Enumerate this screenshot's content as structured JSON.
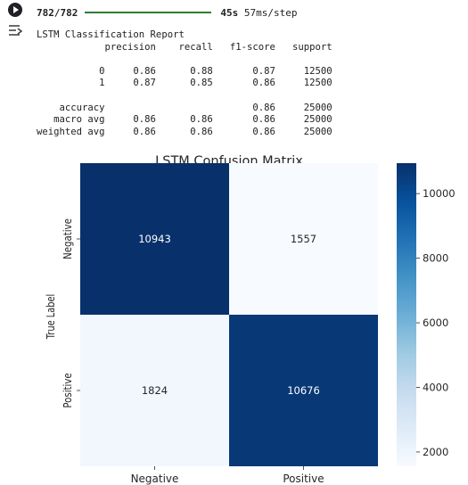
{
  "cell": {
    "run_icon": "play-circle-icon",
    "output_icon": "output-toggle-icon"
  },
  "progress": {
    "steps": "782/782",
    "fraction": 1.0,
    "time": "45s",
    "per_step": "57ms/step",
    "color": "#2e7d32"
  },
  "report": {
    "title": "LSTM Classification Report",
    "header": [
      "precision",
      "recall",
      "f1-score",
      "support"
    ],
    "rows": [
      {
        "label": "0",
        "precision": "0.86",
        "recall": "0.88",
        "f1": "0.87",
        "support": "12500"
      },
      {
        "label": "1",
        "precision": "0.87",
        "recall": "0.85",
        "f1": "0.86",
        "support": "12500"
      }
    ],
    "summary": [
      {
        "label": "accuracy",
        "precision": "",
        "recall": "",
        "f1": "0.86",
        "support": "25000"
      },
      {
        "label": "macro avg",
        "precision": "0.86",
        "recall": "0.86",
        "f1": "0.86",
        "support": "25000"
      },
      {
        "label": "weighted avg",
        "precision": "0.86",
        "recall": "0.86",
        "f1": "0.86",
        "support": "25000"
      }
    ]
  },
  "chart_data": {
    "type": "heatmap",
    "title": "LSTM Confusion Matrix",
    "ylabel": "True Label",
    "xlabel": "",
    "x_categories": [
      "Negative",
      "Positive"
    ],
    "y_categories": [
      "Negative",
      "Positive"
    ],
    "values": [
      [
        10943,
        1557
      ],
      [
        1824,
        10676
      ]
    ],
    "colormap": "Blues",
    "colorbar": {
      "ticks": [
        2000,
        4000,
        6000,
        8000,
        10000
      ],
      "range": [
        1557,
        10943
      ]
    },
    "colors": {
      "low": "#f7fbff",
      "high": "#08306b",
      "text_dark_cell": "#ffffff",
      "text_light_cell": "#262626"
    }
  }
}
